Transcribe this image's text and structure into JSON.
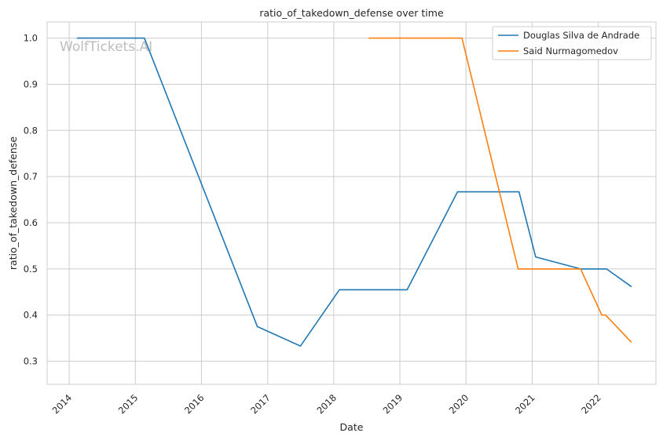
{
  "chart_data": {
    "type": "line",
    "title": "ratio_of_takedown_defense over time",
    "xlabel": "Date",
    "ylabel": "ratio_of_takedown_defense",
    "watermark": "WolfTickets.AI",
    "xlim": [
      "2013-09-01",
      "2022-11-15"
    ],
    "ylim": [
      0.25,
      1.035
    ],
    "x_ticks": [
      "2014",
      "2015",
      "2016",
      "2017",
      "2018",
      "2019",
      "2020",
      "2021",
      "2022"
    ],
    "y_ticks": [
      "0.3",
      "0.4",
      "0.5",
      "0.6",
      "0.7",
      "0.8",
      "0.9",
      "1.0"
    ],
    "grid": true,
    "legend_position": "top-right",
    "series": [
      {
        "name": "Douglas Silva de Andrade",
        "color": "#1f77b4",
        "points": [
          [
            "2014-02-15",
            1.0
          ],
          [
            "2015-02-20",
            1.0
          ],
          [
            "2016-11-05",
            0.375
          ],
          [
            "2017-07-01",
            0.333
          ],
          [
            "2018-02-01",
            0.455
          ],
          [
            "2019-02-10",
            0.455
          ],
          [
            "2019-11-15",
            0.667
          ],
          [
            "2020-10-20",
            0.667
          ],
          [
            "2021-01-20",
            0.526
          ],
          [
            "2021-09-25",
            0.5
          ],
          [
            "2022-02-15",
            0.5
          ],
          [
            "2022-07-01",
            0.462
          ]
        ]
      },
      {
        "name": "Said Nurmagomedov",
        "color": "#ff7f0e",
        "points": [
          [
            "2018-07-15",
            1.0
          ],
          [
            "2019-12-10",
            1.0
          ],
          [
            "2020-10-15",
            0.5
          ],
          [
            "2021-09-25",
            0.5
          ],
          [
            "2022-01-20",
            0.4
          ],
          [
            "2022-02-10",
            0.4
          ],
          [
            "2022-07-01",
            0.342
          ]
        ]
      }
    ]
  }
}
